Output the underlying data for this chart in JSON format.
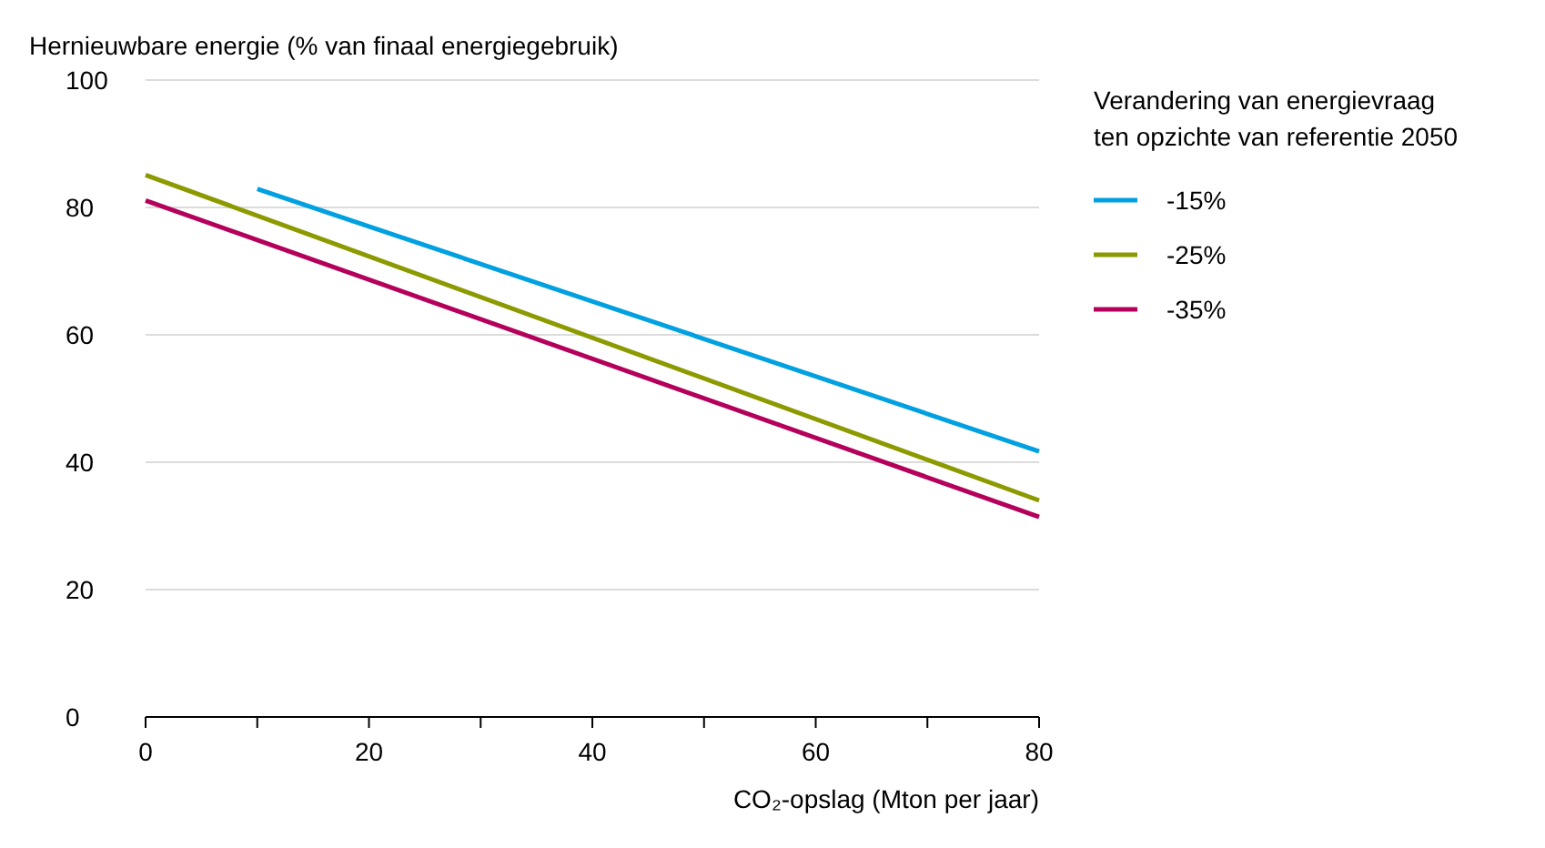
{
  "chart_data": {
    "type": "line",
    "ylabel": "Hernieuwbare energie (% van finaal energiegebruik)",
    "xlabel": "CO₂-opslag (Mton per jaar)",
    "legend_title": "Verandering van energievraag ten opzichte van referentie 2050",
    "series": [
      {
        "name": "-15%",
        "color": "#00a0e1",
        "x": [
          10,
          80
        ],
        "values": [
          82.9,
          41.7
        ]
      },
      {
        "name": "-25%",
        "color": "#8c9a00",
        "x": [
          0,
          80
        ],
        "values": [
          85.1,
          34
        ]
      },
      {
        "name": "-35%",
        "color": "#b4005a",
        "x": [
          0,
          80
        ],
        "values": [
          81.1,
          31.4
        ]
      }
    ],
    "xlim": [
      0,
      80
    ],
    "xticks": [
      0,
      {
        "value": 10,
        "label": null
      },
      20,
      {
        "value": 30,
        "label": null
      },
      40,
      {
        "value": 50,
        "label": null
      },
      60,
      {
        "value": 70,
        "label": null
      },
      80
    ],
    "ylim": [
      0,
      100
    ],
    "yticks": [
      0,
      20,
      40,
      60,
      80,
      100
    ],
    "grid": "y",
    "legend": "right",
    "line_style": "solid",
    "marker": "none"
  }
}
